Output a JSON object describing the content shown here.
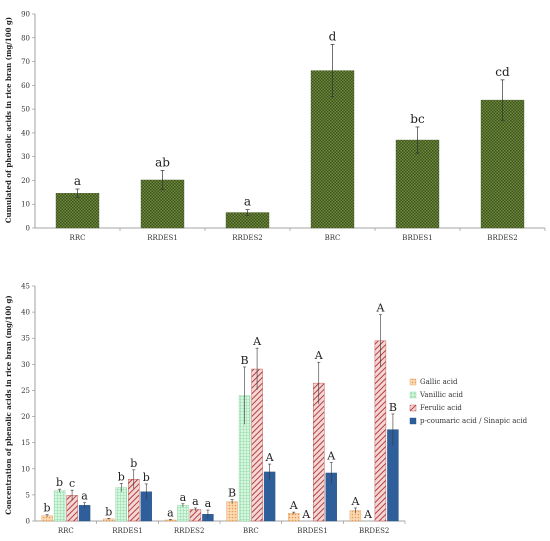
{
  "chart_data": [
    {
      "type": "bar",
      "ylabel": "Cumulated of phenolic acids in rice bran (mg/100 g)",
      "ylim": [
        0,
        90
      ],
      "yticks": [
        0,
        10,
        20,
        30,
        40,
        50,
        60,
        70,
        80,
        90
      ],
      "categories": [
        "RRC",
        "RRDES1",
        "RRDES2",
        "BRC",
        "BRDES1",
        "BRDES2"
      ],
      "values": [
        14.6,
        20.2,
        6.5,
        66.2,
        37.0,
        53.8
      ],
      "errors": [
        1.8,
        4.0,
        1.2,
        11.0,
        5.5,
        8.5
      ],
      "letters": [
        "a",
        "ab",
        "a",
        "d",
        "bc",
        "cd"
      ],
      "color": "#556b2f",
      "grid": false
    },
    {
      "type": "bar",
      "ylabel": "Concentration of phenolic acids in rice bran (mg/100 g)",
      "ylim": [
        0,
        45
      ],
      "yticks": [
        0,
        5,
        10,
        15,
        20,
        25,
        30,
        35,
        40,
        45
      ],
      "categories": [
        "RRC",
        "RRDES1",
        "RRDES2",
        "BRC",
        "BRDES1",
        "BRDES2"
      ],
      "series": [
        {
          "name": "Gallic acid",
          "color": "#f7c08a",
          "pattern": "dots",
          "values": [
            1.0,
            0.4,
            0.2,
            3.7,
            1.5,
            2.0
          ],
          "errors": [
            0.2,
            0.1,
            0.1,
            0.4,
            0.2,
            0.5
          ],
          "letters": [
            "b",
            "b",
            "a",
            "B",
            "A",
            "A"
          ]
        },
        {
          "name": "Vanillic acid",
          "color": "#b9f0c8",
          "pattern": "grid",
          "values": [
            5.8,
            6.4,
            3.0,
            24.0,
            0,
            0
          ],
          "errors": [
            0.3,
            0.8,
            0.3,
            5.5,
            0,
            0
          ],
          "letters": [
            "b",
            "b",
            "a",
            "B",
            "A",
            "A"
          ]
        },
        {
          "name": "Ferulic acid",
          "color": "#c0504d",
          "pattern": "diag",
          "values": [
            4.9,
            8.0,
            2.2,
            29.1,
            26.4,
            34.5
          ],
          "errors": [
            1.0,
            1.8,
            0.3,
            4.0,
            4.0,
            5.0
          ],
          "letters": [
            "c",
            "b",
            "a",
            "A",
            "A",
            "A"
          ]
        },
        {
          "name": "p-coumaric acid / Sinapic acid",
          "color": "#2e5f9a",
          "pattern": "solid",
          "values": [
            3.0,
            5.6,
            1.3,
            9.4,
            9.2,
            17.5
          ],
          "errors": [
            0.5,
            1.5,
            0.8,
            1.5,
            2.0,
            3.0
          ],
          "letters": [
            "a",
            "b",
            "a",
            "A",
            "A",
            "B"
          ]
        }
      ],
      "legend_position": "right",
      "grid": false
    }
  ]
}
